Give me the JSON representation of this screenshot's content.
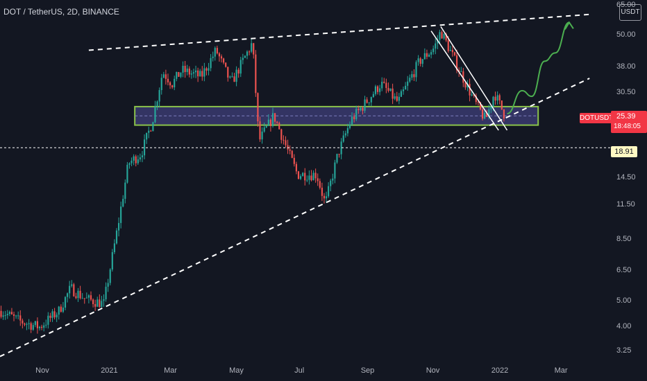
{
  "header": {
    "title": "DOT / TetherUS, 2D, BINANCE"
  },
  "currency_badge": "USDT",
  "ticker_tag": "DOTUSDT",
  "price_tag": {
    "price": "25.39",
    "countdown": "18:48:05"
  },
  "level_tag": "18.91",
  "colors": {
    "up": "#26a69a",
    "down": "#ef5350",
    "background": "#131722",
    "zone_fill": "#3f3f7a",
    "zone_border": "#8bc34a",
    "arrow": "#4caf50",
    "tag": "#f23645"
  },
  "chart_data": {
    "type": "candlestick",
    "title": "DOT / TetherUS, 2D, BINANCE",
    "y_scale": "log",
    "y_ticks": [
      {
        "value": 65.0,
        "label": "65.00"
      },
      {
        "value": 50.0,
        "label": "50.00"
      },
      {
        "value": 38.0,
        "label": "38.00"
      },
      {
        "value": 30.5,
        "label": "30.50"
      },
      {
        "value": 25.39,
        "label": ""
      },
      {
        "value": 18.91,
        "label": ""
      },
      {
        "value": 14.5,
        "label": "14.50"
      },
      {
        "value": 11.5,
        "label": "11.50"
      },
      {
        "value": 8.5,
        "label": "8.50"
      },
      {
        "value": 6.5,
        "label": "6.50"
      },
      {
        "value": 5.0,
        "label": "5.00"
      },
      {
        "value": 4.0,
        "label": "4.00"
      },
      {
        "value": 3.25,
        "label": "3.25"
      }
    ],
    "x_ticks": [
      "Nov",
      "2021",
      "Mar",
      "May",
      "Jul",
      "Sep",
      "Nov",
      "2022",
      "Mar"
    ],
    "x_tick_dates": [
      "2020-11-01",
      "2021-01-01",
      "2021-03-01",
      "2021-05-01",
      "2021-07-01",
      "2021-09-01",
      "2021-11-01",
      "2022-01-01",
      "2022-03-01"
    ],
    "x_range": [
      "2020-09-21",
      "2022-04-15"
    ],
    "y_range": [
      3.0,
      68.0
    ],
    "price_path": [
      [
        "2020-09-22",
        4.6
      ],
      [
        "2020-10-10",
        4.2
      ],
      [
        "2020-10-28",
        4.0
      ],
      [
        "2020-11-15",
        4.6
      ],
      [
        "2020-11-26",
        5.6
      ],
      [
        "2020-12-10",
        5.1
      ],
      [
        "2020-12-27",
        4.9
      ],
      [
        "2021-01-03",
        7.0
      ],
      [
        "2021-01-09",
        9.5
      ],
      [
        "2021-01-19",
        16.5
      ],
      [
        "2021-01-31",
        18.0
      ],
      [
        "2021-02-10",
        23.5
      ],
      [
        "2021-02-20",
        36.5
      ],
      [
        "2021-03-01",
        33.0
      ],
      [
        "2021-03-10",
        37.0
      ],
      [
        "2021-03-28",
        35.0
      ],
      [
        "2021-04-11",
        44.0
      ],
      [
        "2021-04-25",
        33.0
      ],
      [
        "2021-05-15",
        47.0
      ],
      [
        "2021-05-21",
        20.0
      ],
      [
        "2021-06-04",
        25.0
      ],
      [
        "2021-06-18",
        18.0
      ],
      [
        "2021-06-26",
        15.0
      ],
      [
        "2021-07-14",
        15.0
      ],
      [
        "2021-07-22",
        11.6
      ],
      [
        "2021-08-03",
        18.0
      ],
      [
        "2021-08-15",
        24.0
      ],
      [
        "2021-08-29",
        28.0
      ],
      [
        "2021-09-12",
        33.0
      ],
      [
        "2021-09-28",
        28.0
      ],
      [
        "2021-10-18",
        40.0
      ],
      [
        "2021-11-01",
        45.0
      ],
      [
        "2021-11-07",
        52.0
      ],
      [
        "2021-11-23",
        38.0
      ],
      [
        "2021-12-09",
        28.0
      ],
      [
        "2021-12-19",
        24.0
      ],
      [
        "2021-12-27",
        30.5
      ],
      [
        "2022-01-05",
        25.39
      ]
    ],
    "annotations": {
      "resistance_line": [
        [
          "2020-12-13",
          44.0
        ],
        [
          "2022-03-26",
          60.0
        ]
      ],
      "support_line": [
        [
          "2020-09-21",
          3.1
        ],
        [
          "2022-03-26",
          34.5
        ]
      ],
      "support_zone": {
        "from": "2021-01-25",
        "to": "2022-02-06",
        "top": 27.0,
        "bottom": 23.0
      },
      "descending_channel": [
        [
          [
            "2021-10-29",
            52.0
          ],
          [
            "2021-12-31",
            22.0
          ]
        ],
        [
          [
            "2021-11-07",
            54.0
          ],
          [
            "2022-01-08",
            22.0
          ]
        ]
      ],
      "horizontal_level": 18.91,
      "projection_path": [
        [
          "2022-01-08",
          25.39
        ],
        [
          "2022-01-22",
          31.0
        ],
        [
          "2022-01-31",
          29.5
        ],
        [
          "2022-02-12",
          40.0
        ],
        [
          "2022-02-22",
          43.0
        ],
        [
          "2022-03-07",
          56.0
        ]
      ]
    }
  }
}
